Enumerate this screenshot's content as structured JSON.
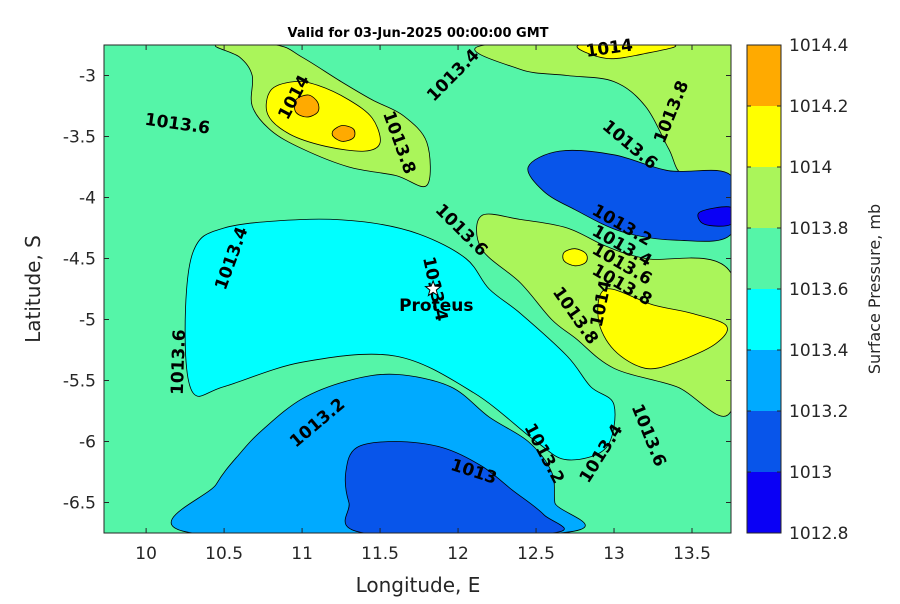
{
  "title": "Valid for 03-Jun-2025 00:00:00 GMT",
  "chart_data": {
    "type": "contour",
    "x_axis": {
      "label": "Longitude, E",
      "range": [
        9.73,
        13.75
      ],
      "ticks": [
        10,
        10.5,
        11,
        11.5,
        12,
        12.5,
        13,
        13.5
      ],
      "tick_labels": [
        "10",
        "10.5",
        "11",
        "11.5",
        "12",
        "12.5",
        "13",
        "13.5"
      ]
    },
    "y_axis": {
      "label": "Latitude, S",
      "range": [
        -6.75,
        -2.75
      ],
      "ticks": [
        -3,
        -3.5,
        -4,
        -4.5,
        -5,
        -5.5,
        -6,
        -6.5
      ],
      "tick_labels": [
        "-3",
        "-3.5",
        "-4",
        "-4.5",
        "-5",
        "-5.5",
        "-6",
        "-6.5"
      ]
    },
    "colorbar": {
      "label": "Surface Pressure, mb",
      "levels": [
        1012.8,
        1013,
        1013.2,
        1013.4,
        1013.6,
        1013.8,
        1014,
        1014.2,
        1014.4
      ],
      "level_labels": [
        "1012.8",
        "1013",
        "1013.2",
        "1013.4",
        "1013.6",
        "1013.8",
        "1014",
        "1014.2",
        "1014.4"
      ],
      "colors": [
        "#0a00f5",
        "#0855ea",
        "#00aaff",
        "#00ffff",
        "#55f5a8",
        "#aaf55a",
        "#ffff00",
        "#ffaa00",
        "#ff5500"
      ]
    },
    "marker": {
      "name": "Proteus",
      "lon": 11.84,
      "lat": -4.75,
      "symbol": "star"
    },
    "contour_labels": [
      {
        "text": "1013.6",
        "lon": 10.2,
        "lat": -3.4,
        "angle": 8
      },
      {
        "text": "1014",
        "lon": 10.95,
        "lat": -3.18,
        "angle": -62
      },
      {
        "text": "1013.8",
        "lon": 11.62,
        "lat": -3.55,
        "angle": 70
      },
      {
        "text": "1013.4",
        "lon": 11.97,
        "lat": -3.0,
        "angle": -45
      },
      {
        "text": "1014",
        "lon": 12.97,
        "lat": -2.78,
        "angle": -8
      },
      {
        "text": "1013.8",
        "lon": 13.37,
        "lat": -3.3,
        "angle": -68
      },
      {
        "text": "1013.6",
        "lon": 13.1,
        "lat": -3.57,
        "angle": 40
      },
      {
        "text": "1013.4",
        "lon": 10.55,
        "lat": -4.5,
        "angle": -70
      },
      {
        "text": "1013.6",
        "lon": 12.02,
        "lat": -4.27,
        "angle": 45
      },
      {
        "text": "1013.2",
        "lon": 13.05,
        "lat": -4.23,
        "angle": 30
      },
      {
        "text": "1013.4",
        "lon": 13.05,
        "lat": -4.4,
        "angle": 30
      },
      {
        "text": "1013.6",
        "lon": 13.05,
        "lat": -4.55,
        "angle": 30
      },
      {
        "text": "1013.8",
        "lon": 13.05,
        "lat": -4.72,
        "angle": 30
      },
      {
        "text": "1013.4",
        "lon": 11.85,
        "lat": -4.75,
        "angle": 78
      },
      {
        "text": "1014",
        "lon": 12.92,
        "lat": -4.87,
        "angle": -78
      },
      {
        "text": "1013.8",
        "lon": 12.75,
        "lat": -4.97,
        "angle": 55
      },
      {
        "text": "1013.6",
        "lon": 10.21,
        "lat": -5.35,
        "angle": -88
      },
      {
        "text": "1013.2",
        "lon": 11.1,
        "lat": -5.85,
        "angle": -40
      },
      {
        "text": "1013.2",
        "lon": 12.55,
        "lat": -6.1,
        "angle": 62
      },
      {
        "text": "1013",
        "lon": 12.1,
        "lat": -6.25,
        "angle": 18
      },
      {
        "text": "1013.4",
        "lon": 12.92,
        "lat": -6.1,
        "angle": -58
      },
      {
        "text": "1013.6",
        "lon": 13.22,
        "lat": -5.95,
        "angle": 68
      }
    ],
    "regions": [
      {
        "level": "1013.8",
        "shape": "top-left ridge",
        "points": [
          [
            10.83,
            -2.75
          ],
          [
            11.0,
            -2.85
          ],
          [
            11.25,
            -3.05
          ],
          [
            11.45,
            -3.2
          ],
          [
            11.65,
            -3.33
          ],
          [
            11.8,
            -3.55
          ],
          [
            11.8,
            -3.9
          ],
          [
            11.6,
            -3.82
          ],
          [
            11.3,
            -3.75
          ],
          [
            11.0,
            -3.6
          ],
          [
            10.8,
            -3.45
          ],
          [
            10.68,
            -3.25
          ],
          [
            10.68,
            -3.0
          ],
          [
            10.6,
            -2.85
          ],
          [
            10.45,
            -2.75
          ]
        ]
      },
      {
        "level": "1014",
        "shape": "top-left high",
        "points": [
          [
            10.8,
            -3.12
          ],
          [
            10.95,
            -3.05
          ],
          [
            11.1,
            -3.08
          ],
          [
            11.3,
            -3.2
          ],
          [
            11.45,
            -3.35
          ],
          [
            11.5,
            -3.55
          ],
          [
            11.4,
            -3.62
          ],
          [
            11.15,
            -3.58
          ],
          [
            10.92,
            -3.48
          ],
          [
            10.78,
            -3.32
          ]
        ]
      },
      {
        "level": "1014.2",
        "shape": "cell",
        "points": [
          [
            10.96,
            -3.2
          ],
          [
            11.04,
            -3.16
          ],
          [
            11.1,
            -3.22
          ],
          [
            11.1,
            -3.3
          ],
          [
            11.03,
            -3.34
          ],
          [
            10.96,
            -3.3
          ]
        ]
      },
      {
        "level": "1014.2",
        "shape": "cell",
        "points": [
          [
            11.2,
            -3.45
          ],
          [
            11.26,
            -3.41
          ],
          [
            11.33,
            -3.44
          ],
          [
            11.33,
            -3.51
          ],
          [
            11.26,
            -3.54
          ],
          [
            11.2,
            -3.5
          ]
        ]
      },
      {
        "level": "1013.8",
        "shape": "top-right ridge",
        "points": [
          [
            12.18,
            -2.75
          ],
          [
            12.4,
            -2.95
          ],
          [
            12.7,
            -3.0
          ],
          [
            13.0,
            -3.05
          ],
          [
            13.2,
            -3.25
          ],
          [
            13.35,
            -3.6
          ],
          [
            13.45,
            -3.82
          ],
          [
            13.75,
            -3.85
          ],
          [
            13.75,
            -2.75
          ]
        ]
      },
      {
        "level": "1014",
        "shape": "top-right high",
        "points": [
          [
            12.78,
            -2.75
          ],
          [
            12.95,
            -2.86
          ],
          [
            13.2,
            -2.82
          ],
          [
            13.38,
            -2.75
          ]
        ]
      },
      {
        "level": "1013.8",
        "shape": "central ridge",
        "points": [
          [
            12.15,
            -4.15
          ],
          [
            12.4,
            -4.18
          ],
          [
            12.7,
            -4.25
          ],
          [
            12.95,
            -4.4
          ],
          [
            13.2,
            -4.5
          ],
          [
            13.75,
            -4.62
          ],
          [
            13.75,
            -5.75
          ],
          [
            13.4,
            -5.55
          ],
          [
            13.0,
            -5.4
          ],
          [
            12.75,
            -5.15
          ],
          [
            12.6,
            -5.0
          ],
          [
            12.4,
            -4.7
          ],
          [
            12.15,
            -4.42
          ]
        ]
      },
      {
        "level": "1014",
        "shape": "central high",
        "points": [
          [
            12.95,
            -4.75
          ],
          [
            13.25,
            -4.88
          ],
          [
            13.5,
            -4.95
          ],
          [
            13.72,
            -5.05
          ],
          [
            13.65,
            -5.2
          ],
          [
            13.4,
            -5.35
          ],
          [
            13.2,
            -5.4
          ],
          [
            13.0,
            -5.25
          ],
          [
            12.9,
            -5.0
          ]
        ]
      },
      {
        "level": "1014",
        "shape": "cell",
        "points": [
          [
            12.68,
            -4.45
          ],
          [
            12.75,
            -4.42
          ],
          [
            12.82,
            -4.46
          ],
          [
            12.82,
            -4.53
          ],
          [
            12.75,
            -4.56
          ],
          [
            12.68,
            -4.52
          ]
        ]
      },
      {
        "level": "1013",
        "shape": "north-east trough",
        "points": [
          [
            12.45,
            -3.75
          ],
          [
            12.65,
            -3.62
          ],
          [
            13.0,
            -3.65
          ],
          [
            13.35,
            -3.78
          ],
          [
            13.75,
            -3.82
          ],
          [
            13.75,
            -4.3
          ],
          [
            13.4,
            -4.35
          ],
          [
            13.05,
            -4.28
          ],
          [
            12.75,
            -4.1
          ],
          [
            12.55,
            -3.95
          ]
        ]
      },
      {
        "level": "1012.8",
        "shape": "north-east low",
        "points": [
          [
            13.55,
            -4.12
          ],
          [
            13.75,
            -4.08
          ],
          [
            13.75,
            -4.22
          ],
          [
            13.58,
            -4.22
          ]
        ]
      },
      {
        "level": "1013.2",
        "shape": "south trough",
        "points": [
          [
            10.75,
            -5.9
          ],
          [
            11.0,
            -5.65
          ],
          [
            11.3,
            -5.5
          ],
          [
            11.6,
            -5.45
          ],
          [
            11.95,
            -5.55
          ],
          [
            12.2,
            -5.8
          ],
          [
            12.45,
            -6.0
          ],
          [
            12.6,
            -6.25
          ],
          [
            12.62,
            -6.5
          ],
          [
            12.65,
            -6.75
          ],
          [
            10.3,
            -6.75
          ],
          [
            10.45,
            -6.35
          ],
          [
            10.6,
            -6.1
          ]
        ]
      },
      {
        "level": "1013",
        "shape": "south low",
        "points": [
          [
            11.35,
            -6.05
          ],
          [
            11.6,
            -6.0
          ],
          [
            11.9,
            -6.05
          ],
          [
            12.15,
            -6.2
          ],
          [
            12.35,
            -6.4
          ],
          [
            12.55,
            -6.6
          ],
          [
            12.6,
            -6.75
          ],
          [
            11.4,
            -6.75
          ],
          [
            11.3,
            -6.5
          ],
          [
            11.28,
            -6.25
          ]
        ]
      },
      {
        "level": "1013.4",
        "shape": "western basin",
        "points": [
          [
            10.3,
            -4.45
          ],
          [
            10.5,
            -4.25
          ],
          [
            11.0,
            -4.18
          ],
          [
            11.4,
            -4.2
          ],
          [
            11.75,
            -4.3
          ],
          [
            12.05,
            -4.5
          ],
          [
            12.2,
            -4.75
          ],
          [
            12.4,
            -4.95
          ],
          [
            12.7,
            -5.3
          ],
          [
            12.85,
            -5.55
          ],
          [
            13.0,
            -5.7
          ],
          [
            12.95,
            -6.05
          ],
          [
            12.7,
            -6.15
          ],
          [
            12.5,
            -6.0
          ],
          [
            12.1,
            -5.6
          ],
          [
            11.6,
            -5.3
          ],
          [
            11.0,
            -5.35
          ],
          [
            10.5,
            -5.55
          ],
          [
            10.3,
            -5.6
          ],
          [
            10.25,
            -5.1
          ]
        ]
      }
    ]
  }
}
